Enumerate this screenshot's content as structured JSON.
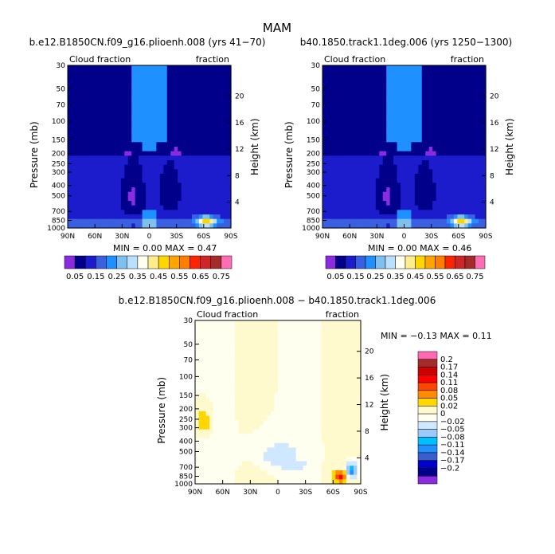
{
  "figure": {
    "season": "MAM",
    "difference_title": "b.e12.B1850CN.f09_g16.plioenh.008 − b40.1850.track1.1deg.006"
  },
  "chart_data": [
    {
      "type": "heatmap",
      "title": "b.e12.B1850CN.f09_g16.plioenh.008 (yrs 41−70)",
      "field_label": "Cloud fraction",
      "units_label": "fraction",
      "ylabel": "Pressure (mb)",
      "ylabel_right": "Height (km)",
      "x_ticks": [
        "90N",
        "60N",
        "30N",
        "0",
        "30S",
        "60S",
        "90S"
      ],
      "y_ticks": [
        "30",
        "50",
        "70",
        "100",
        "150",
        "200",
        "250",
        "300",
        "400",
        "500",
        "700",
        "850",
        "1000"
      ],
      "height_ticks": [
        "20",
        "16",
        "12",
        "8",
        "4"
      ],
      "min_label": "MIN =",
      "min_value": "0.00",
      "max_label": "MAX =",
      "max_value": "0.47",
      "colorbar_labels": [
        "0.05",
        "0.15",
        "0.25",
        "0.35",
        "0.45",
        "0.55",
        "0.65",
        "0.75"
      ],
      "colorbar_orientation": "horizontal"
    },
    {
      "type": "heatmap",
      "title": "b40.1850.track1.1deg.006 (yrs 1250−1300)",
      "field_label": "Cloud fraction",
      "units_label": "fraction",
      "ylabel": "Pressure (mb)",
      "ylabel_right": "Height (km)",
      "x_ticks": [
        "90N",
        "60N",
        "30N",
        "0",
        "30S",
        "60S",
        "90S"
      ],
      "y_ticks": [
        "30",
        "50",
        "70",
        "100",
        "150",
        "200",
        "250",
        "300",
        "400",
        "500",
        "700",
        "850",
        "1000"
      ],
      "height_ticks": [
        "20",
        "16",
        "12",
        "8",
        "4"
      ],
      "min_label": "MIN =",
      "min_value": "0.00",
      "max_label": "MAX =",
      "max_value": "0.46",
      "colorbar_labels": [
        "0.05",
        "0.15",
        "0.25",
        "0.35",
        "0.45",
        "0.55",
        "0.65",
        "0.75"
      ],
      "colorbar_orientation": "horizontal"
    },
    {
      "type": "heatmap",
      "title": "",
      "field_label": "Cloud fraction",
      "units_label": "fraction",
      "ylabel": "Pressure (mb)",
      "ylabel_right": "Height (km)",
      "x_ticks": [
        "90N",
        "60N",
        "30N",
        "0",
        "30S",
        "60S",
        "90S"
      ],
      "y_ticks": [
        "30",
        "50",
        "70",
        "100",
        "150",
        "200",
        "250",
        "300",
        "400",
        "500",
        "700",
        "850",
        "1000"
      ],
      "height_ticks": [
        "20",
        "16",
        "12",
        "8",
        "4"
      ],
      "min_label": "MIN =",
      "min_value": "−0.13",
      "max_label": "MAX =",
      "max_value": "0.11",
      "colorbar_labels": [
        "0.2",
        "0.17",
        "0.14",
        "0.11",
        "0.08",
        "0.05",
        "0.02",
        "0",
        "−0.02",
        "−0.05",
        "−0.08",
        "−0.11",
        "−0.14",
        "−0.17",
        "−0.2"
      ],
      "colorbar_orientation": "vertical"
    }
  ],
  "colors": {
    "abs_scale": [
      "#8a2be2",
      "#00008b",
      "#1c1ccd",
      "#3a5fe0",
      "#1e90ff",
      "#7ec0ee",
      "#b9e0ff",
      "#fffff0",
      "#ffec8b",
      "#ffd700",
      "#ffa500",
      "#ff7f00",
      "#ff2400",
      "#cd2626",
      "#a52a2a",
      "#ff6eb4"
    ],
    "diff_scale": [
      "#ff69b4",
      "#a52a2a",
      "#cd0000",
      "#ff0000",
      "#ff4500",
      "#ff8c00",
      "#ffd700",
      "#fffacd",
      "#fffff0",
      "#cfe8ff",
      "#9cc9ff",
      "#00bfff",
      "#1e90ff",
      "#3a5fcd",
      "#0000cd",
      "#00008b",
      "#8a2be2"
    ]
  }
}
